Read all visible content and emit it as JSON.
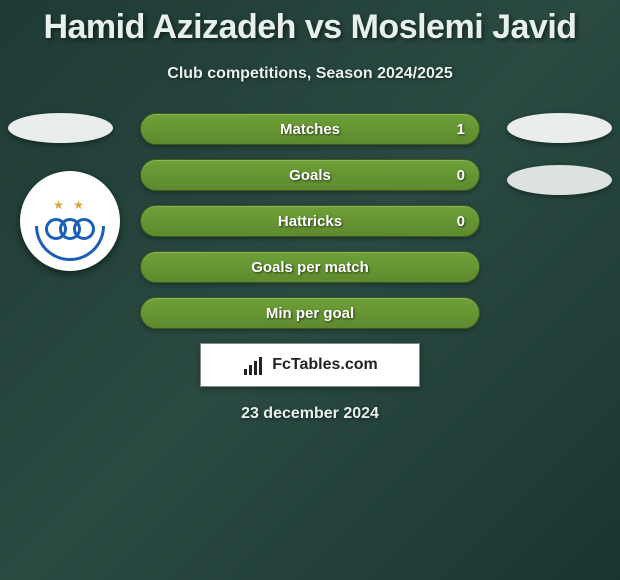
{
  "header": {
    "title": "Hamid Azizadeh vs Moslemi Javid",
    "subtitle": "Club competitions, Season 2024/2025"
  },
  "side_badges": {
    "left1_color": "#e9edec",
    "right1_color": "#e9edec",
    "right2_color": "#dce2e0"
  },
  "club_logo": {
    "background": "#ffffff",
    "ring_color": "#1c5fb8",
    "star_color": "#d4a838"
  },
  "stats": [
    {
      "label": "Matches",
      "value": "1"
    },
    {
      "label": "Goals",
      "value": "0"
    },
    {
      "label": "Hattricks",
      "value": "0"
    },
    {
      "label": "Goals per match",
      "value": ""
    },
    {
      "label": "Min per goal",
      "value": ""
    }
  ],
  "stat_style": {
    "bar_gradient_top": "#6fa038",
    "bar_gradient_bottom": "#5d8a2e",
    "bar_border": "#3d5a1e",
    "text_color": "#ffffff",
    "label_fontsize": 15
  },
  "brand": {
    "text": "FcTables.com",
    "box_bg": "#ffffff",
    "text_color": "#222222"
  },
  "footer": {
    "date": "23 december 2024"
  },
  "theme": {
    "bg_gradient_a": "#1e3a34",
    "bg_gradient_b": "#2a4a42",
    "bg_gradient_c": "#1a3530",
    "headline_color": "#e8f0ee"
  }
}
